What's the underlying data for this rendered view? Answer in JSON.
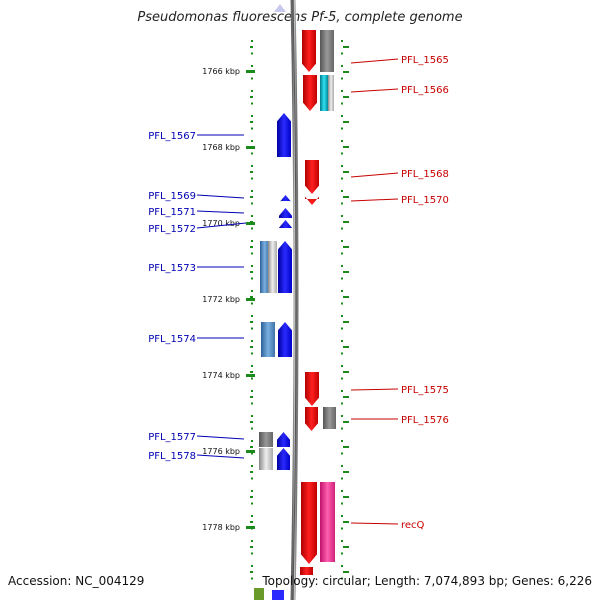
{
  "title": "Pseudomonas fluorescens Pf-5, complete genome",
  "footer": {
    "accession": "Accession: NC_004129",
    "topology": "Topology: circular; Length: 7,074,893 bp; Genes: 6,226"
  },
  "colors": {
    "reverse_label": "#0000b4",
    "forward_label": "#c80000",
    "backbone": "#888888",
    "tick": "#1a8a1a"
  },
  "ticks": [
    "1766 kbp",
    "1768 kbp",
    "1770 kbp",
    "1772 kbp",
    "1774 kbp",
    "1776 kbp",
    "1778 kbp"
  ],
  "genes_reverse": [
    "PFL_1567",
    "PFL_1569",
    "PFL_1571",
    "PFL_1572",
    "PFL_1573",
    "PFL_1574",
    "PFL_1577",
    "PFL_1578"
  ],
  "genes_forward": [
    "PFL_1565",
    "PFL_1566",
    "PFL_1568",
    "PFL_1570",
    "PFL_1575",
    "PFL_1576",
    "recQ"
  ]
}
